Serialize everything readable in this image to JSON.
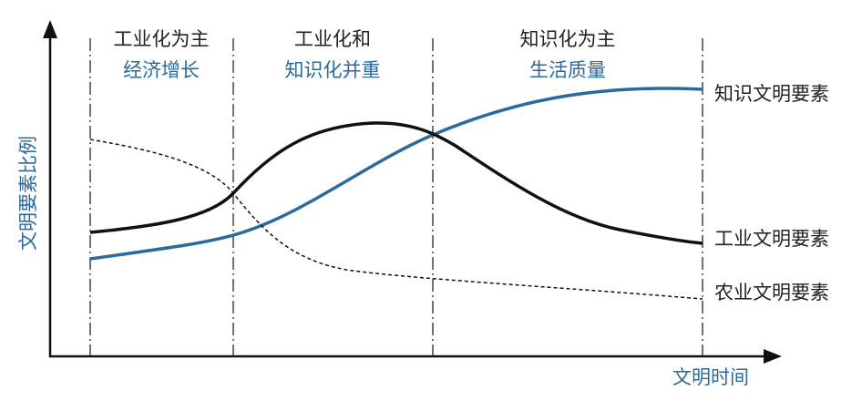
{
  "axes": {
    "y_label": "文明要素比例",
    "x_label": "文明时间"
  },
  "phases": [
    {
      "title": "工业化为主",
      "subtitle": "经济增长"
    },
    {
      "title": "工业化和",
      "subtitle": "知识化并重"
    },
    {
      "title": "知识化为主",
      "subtitle": "生活质量"
    }
  ],
  "curves": [
    {
      "label": "知识文明要素"
    },
    {
      "label": "工业文明要素"
    },
    {
      "label": "农业文明要素"
    }
  ]
}
